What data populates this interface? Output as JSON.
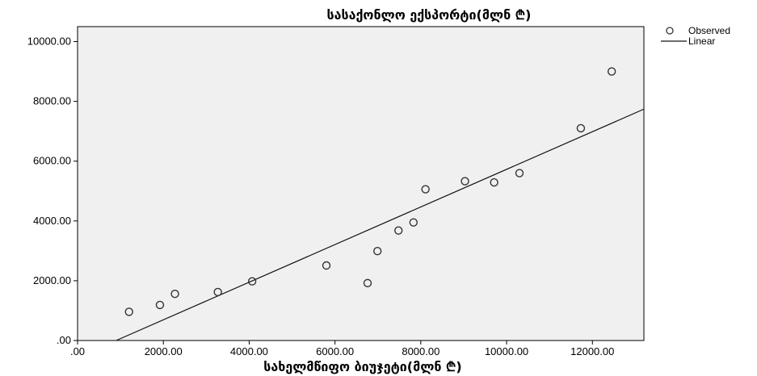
{
  "chart_data": {
    "type": "scatter",
    "title": "სასაქონლო ექსპორტი(მლნ ₾)",
    "xlabel": "სახელმწიფო ბიუჯეტი(მლნ ₾)",
    "ylabel": "",
    "xlim": [
      0,
      13200
    ],
    "ylim": [
      0,
      10500
    ],
    "x_ticks": [
      0,
      2000,
      4000,
      6000,
      8000,
      10000,
      12000
    ],
    "x_tick_labels": [
      ".00",
      "2000.00",
      "4000.00",
      "6000.00",
      "8000.00",
      "10000.00",
      "12000.00"
    ],
    "y_ticks": [
      0,
      2000,
      4000,
      6000,
      8000,
      10000
    ],
    "y_tick_labels": [
      ".00",
      "2000.00",
      "4000.00",
      "6000.00",
      "8000.00",
      "10000.00"
    ],
    "grid": false,
    "legend_position": "top-right",
    "series": [
      {
        "name": "Observed",
        "kind": "points",
        "x": [
          1200,
          1920,
          2270,
          3270,
          4070,
          5800,
          6760,
          6990,
          7480,
          7830,
          8110,
          9030,
          9710,
          10300,
          11730,
          12450
        ],
        "y": [
          960,
          1190,
          1560,
          1620,
          1980,
          2510,
          1920,
          2990,
          3680,
          3950,
          5060,
          5330,
          5290,
          5600,
          7100,
          9000
        ]
      },
      {
        "name": "Linear",
        "kind": "line",
        "x": [
          900,
          13200
        ],
        "y": [
          0,
          7740
        ]
      }
    ],
    "colors": {
      "plot_background": "#f0f0f0",
      "marker_stroke": "#333333",
      "line": "#111111"
    }
  }
}
